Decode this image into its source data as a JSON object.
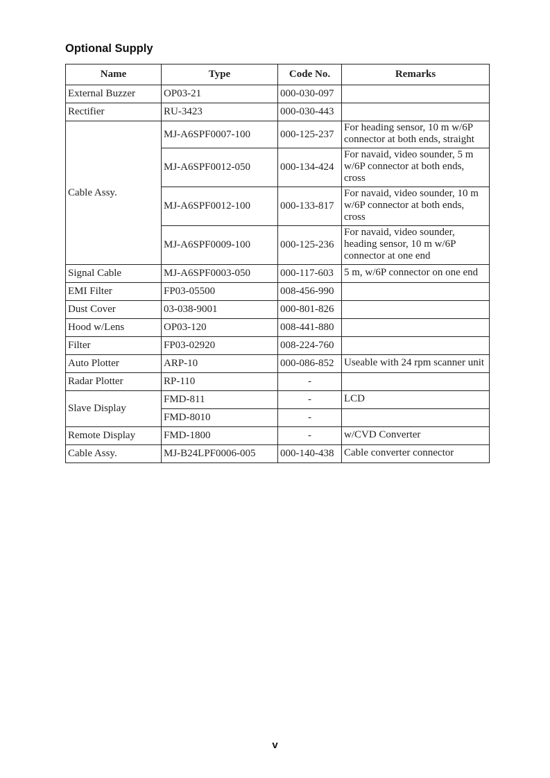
{
  "title": "Optional Supply",
  "headers": {
    "name": "Name",
    "type": "Type",
    "code": "Code No.",
    "remarks": "Remarks"
  },
  "groups": [
    {
      "name": "External Buzzer",
      "items": [
        {
          "type": "OP03-21",
          "code": "000-030-097",
          "remarks": ""
        }
      ]
    },
    {
      "name": "Rectifier",
      "items": [
        {
          "type": "RU-3423",
          "code": "000-030-443",
          "remarks": ""
        }
      ]
    },
    {
      "name": "Cable Assy.",
      "items": [
        {
          "type": "MJ-A6SPF0007-100",
          "code": "000-125-237",
          "remarks": "For heading sensor, 10 m w/6P connector at both ends, straight"
        },
        {
          "type": "MJ-A6SPF0012-050",
          "code": "000-134-424",
          "remarks": "For navaid, video sounder, 5 m w/6P connector at both ends, cross"
        },
        {
          "type": "MJ-A6SPF0012-100",
          "code": "000-133-817",
          "remarks": "For navaid, video sounder, 10 m w/6P connector at both ends, cross"
        },
        {
          "type": "MJ-A6SPF0009-100",
          "code": "000-125-236",
          "remarks": "For navaid, video sounder, heading sensor, 10 m w/6P connector at one end"
        }
      ]
    },
    {
      "name": "Signal Cable",
      "items": [
        {
          "type": "MJ-A6SPF0003-050",
          "code": "000-117-603",
          "remarks": "5 m, w/6P connector on one end"
        }
      ]
    },
    {
      "name": "EMI Filter",
      "items": [
        {
          "type": "FP03-05500",
          "code": "008-456-990",
          "remarks": ""
        }
      ]
    },
    {
      "name": "Dust Cover",
      "items": [
        {
          "type": "03-038-9001",
          "code": "000-801-826",
          "remarks": ""
        }
      ]
    },
    {
      "name": "Hood w/Lens",
      "items": [
        {
          "type": "OP03-120",
          "code": "008-441-880",
          "remarks": ""
        }
      ]
    },
    {
      "name": "Filter",
      "items": [
        {
          "type": "FP03-02920",
          "code": "008-224-760",
          "remarks": ""
        }
      ]
    },
    {
      "name": "Auto Plotter",
      "items": [
        {
          "type": "ARP-10",
          "code": "000-086-852",
          "remarks": "Useable with 24 rpm scanner unit"
        }
      ]
    },
    {
      "name": "Radar Plotter",
      "items": [
        {
          "type": "RP-110",
          "code": "-",
          "remarks": ""
        }
      ]
    },
    {
      "name": "Slave Display",
      "items": [
        {
          "type": "FMD-811",
          "code": "-",
          "remarks": "LCD"
        },
        {
          "type": "FMD-8010",
          "code": "-",
          "remarks": ""
        }
      ]
    },
    {
      "name": "Remote Display",
      "items": [
        {
          "type": "FMD-1800",
          "code": "-",
          "remarks": "w/CVD Converter"
        }
      ]
    },
    {
      "name": "Cable Assy.",
      "items": [
        {
          "type": "MJ-B24LPF0006-005",
          "code": "000-140-438",
          "remarks": "Cable converter connector"
        }
      ]
    }
  ],
  "page_number": "v"
}
